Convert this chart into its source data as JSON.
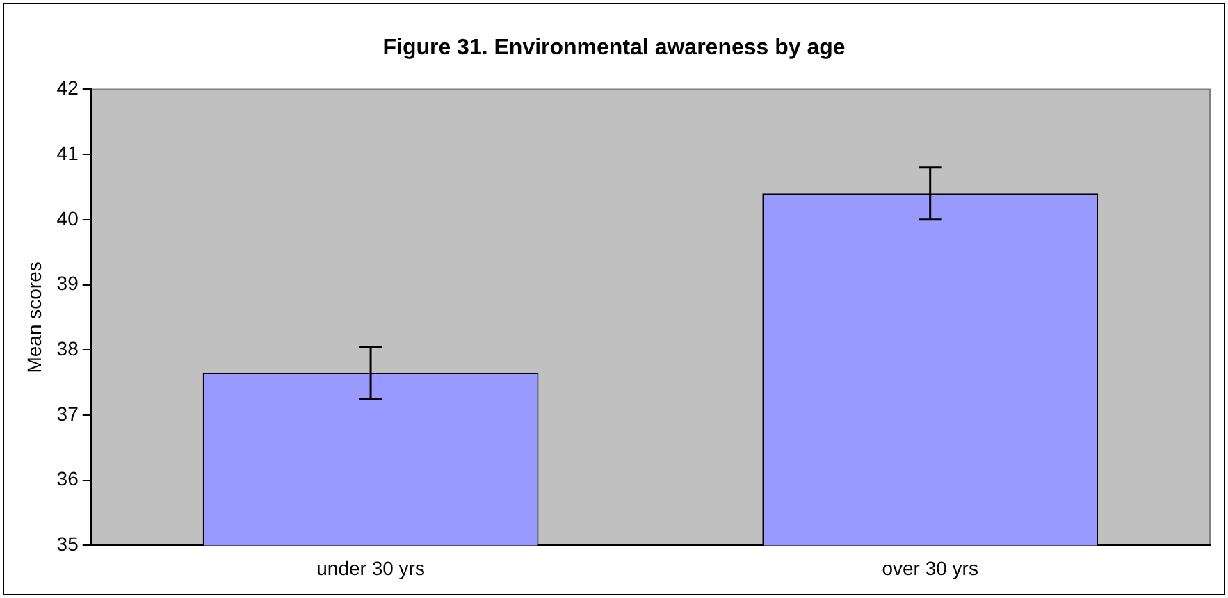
{
  "chart_data": {
    "type": "bar",
    "title": "Figure 31. Environmental awareness by age",
    "ylabel": "Mean scores",
    "categories": [
      "under 30 yrs",
      "over 30 yrs"
    ],
    "values": [
      37.65,
      40.4
    ],
    "errors": [
      [
        37.25,
        38.05
      ],
      [
        40.0,
        40.8
      ]
    ],
    "color": "#9999ff",
    "ylim": [
      35,
      42
    ],
    "yticks": [
      35,
      36,
      37,
      38,
      39,
      40,
      41,
      42
    ],
    "grid": false,
    "legend": false
  }
}
